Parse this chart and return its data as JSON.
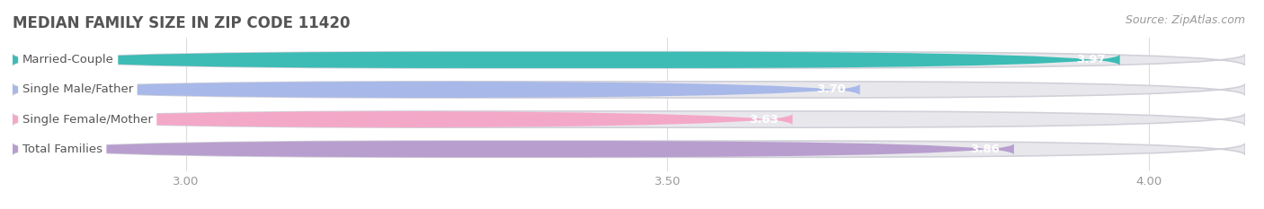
{
  "title": "MEDIAN FAMILY SIZE IN ZIP CODE 11420",
  "source": "Source: ZipAtlas.com",
  "categories": [
    "Married-Couple",
    "Single Male/Father",
    "Single Female/Mother",
    "Total Families"
  ],
  "values": [
    3.97,
    3.7,
    3.63,
    3.86
  ],
  "bar_colors": [
    "#3cbcb5",
    "#a8b8e8",
    "#f4a8c8",
    "#b89ece"
  ],
  "xlim_min": 2.82,
  "xlim_max": 4.1,
  "xticks": [
    3.0,
    3.5,
    4.0
  ],
  "xtick_labels": [
    "3.00",
    "3.50",
    "4.00"
  ],
  "label_fontsize": 9.5,
  "value_fontsize": 9.5,
  "title_fontsize": 12,
  "source_fontsize": 9,
  "background_color": "#ffffff",
  "bar_bg_color": "#e8e8ec",
  "bar_height": 0.55,
  "bar_gap": 0.45,
  "label_text_color": "#555555",
  "title_color": "#555555",
  "source_color": "#999999",
  "tick_color": "#999999",
  "grid_color": "#dddddd",
  "value_label_color": "#ffffff"
}
